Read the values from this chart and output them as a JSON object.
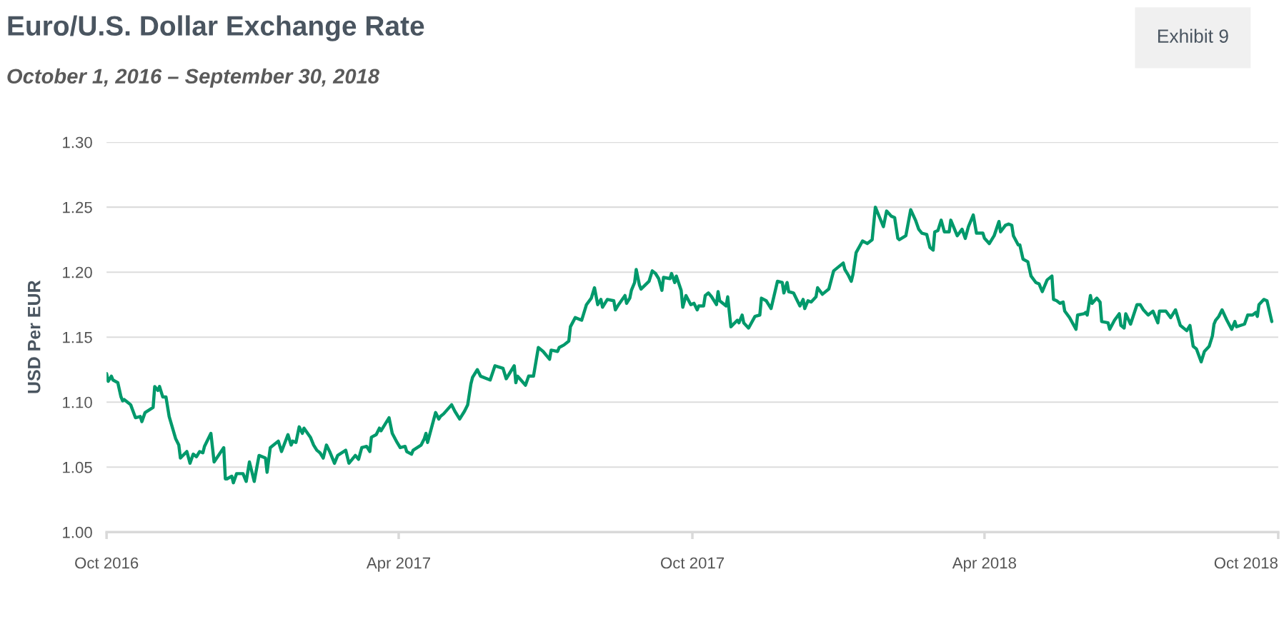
{
  "chart_data": {
    "type": "line",
    "title": "Euro/U.S. Dollar Exchange Rate",
    "subtitle": "October 1, 2016 – September 30, 2018",
    "ylabel": "USD Per EUR",
    "annotations": [
      "Exhibit 9"
    ],
    "ylim": [
      1.0,
      1.3
    ],
    "yticks": [
      {
        "value": 1.0,
        "label": "1.00"
      },
      {
        "value": 1.05,
        "label": "1.05"
      },
      {
        "value": 1.1,
        "label": "1.10"
      },
      {
        "value": 1.15,
        "label": "1.15"
      },
      {
        "value": 1.2,
        "label": "1.20"
      },
      {
        "value": 1.25,
        "label": "1.25"
      },
      {
        "value": 1.3,
        "label": "1.30"
      }
    ],
    "xlim": [
      "2016-10-01",
      "2018-10-01"
    ],
    "xticks": [
      {
        "value": "2016-10-01",
        "label": "Oct 2016"
      },
      {
        "value": "2017-04-01",
        "label": "Apr 2017"
      },
      {
        "value": "2017-10-01",
        "label": "Oct 2017"
      },
      {
        "value": "2018-04-01",
        "label": "Apr 2018"
      },
      {
        "value": "2018-10-01",
        "label": "Oct 2018"
      }
    ],
    "grid": "y",
    "marker": "none",
    "line_style": "solid",
    "series": [
      {
        "color": "#00996b",
        "x": [
          "2016-10-01",
          "2016-10-02",
          "2016-10-04",
          "2016-10-05",
          "2016-10-08",
          "2016-10-10",
          "2016-10-11",
          "2016-10-12",
          "2016-10-14",
          "2016-10-16",
          "2016-10-19",
          "2016-10-22",
          "2016-10-23",
          "2016-10-25",
          "2016-10-30",
          "2016-10-31",
          "2016-11-02",
          "2016-11-03",
          "2016-11-05",
          "2016-11-07",
          "2016-11-09",
          "2016-11-13",
          "2016-11-15",
          "2016-11-16",
          "2016-11-20",
          "2016-11-22",
          "2016-11-24",
          "2016-11-26",
          "2016-11-28",
          "2016-11-30",
          "2016-12-01",
          "2016-12-05",
          "2016-12-07",
          "2016-12-13",
          "2016-12-14",
          "2016-12-15",
          "2016-12-18",
          "2016-12-19",
          "2016-12-21",
          "2016-12-25",
          "2016-12-27",
          "2016-12-29",
          "2017-01-01",
          "2017-01-04",
          "2017-01-08",
          "2017-01-09",
          "2017-01-11",
          "2017-01-16",
          "2017-01-18",
          "2017-01-22",
          "2017-01-24",
          "2017-01-25",
          "2017-01-27",
          "2017-01-29",
          "2017-01-31",
          "2017-02-01",
          "2017-02-05",
          "2017-02-07",
          "2017-02-09",
          "2017-02-11",
          "2017-02-13",
          "2017-02-15",
          "2017-02-17",
          "2017-02-20",
          "2017-02-22",
          "2017-02-27",
          "2017-03-01",
          "2017-03-05",
          "2017-03-07",
          "2017-03-09",
          "2017-03-12",
          "2017-03-14",
          "2017-03-15",
          "2017-03-18",
          "2017-03-20",
          "2017-03-21",
          "2017-03-26",
          "2017-03-28",
          "2017-03-31",
          "2017-04-02",
          "2017-04-05",
          "2017-04-06",
          "2017-04-09",
          "2017-04-10",
          "2017-04-15",
          "2017-04-17",
          "2017-04-18",
          "2017-04-19",
          "2017-04-24",
          "2017-04-26",
          "2017-04-27",
          "2017-04-29",
          "2017-05-04",
          "2017-05-06",
          "2017-05-09",
          "2017-05-12",
          "2017-05-14",
          "2017-05-16",
          "2017-05-17",
          "2017-05-20",
          "2017-05-22",
          "2017-05-28",
          "2017-05-31",
          "2017-06-05",
          "2017-06-07",
          "2017-06-12",
          "2017-06-13",
          "2017-06-14",
          "2017-06-19",
          "2017-06-21",
          "2017-06-24",
          "2017-06-27",
          "2017-06-30",
          "2017-07-04",
          "2017-07-05",
          "2017-07-09",
          "2017-07-10",
          "2017-07-13",
          "2017-07-16",
          "2017-07-17",
          "2017-07-20",
          "2017-07-24",
          "2017-07-27",
          "2017-07-30",
          "2017-08-01",
          "2017-08-03",
          "2017-08-05",
          "2017-08-06",
          "2017-08-09",
          "2017-08-13",
          "2017-08-14",
          "2017-08-16",
          "2017-08-20",
          "2017-08-21",
          "2017-08-23",
          "2017-08-24",
          "2017-08-26",
          "2017-08-27",
          "2017-08-29",
          "2017-08-30",
          "2017-09-04",
          "2017-09-06",
          "2017-09-08",
          "2017-09-10",
          "2017-09-12",
          "2017-09-13",
          "2017-09-17",
          "2017-09-18",
          "2017-09-20",
          "2017-09-21",
          "2017-09-24",
          "2017-09-25",
          "2017-09-27",
          "2017-09-30",
          "2017-10-02",
          "2017-10-04",
          "2017-10-05",
          "2017-10-08",
          "2017-10-09",
          "2017-10-11",
          "2017-10-13",
          "2017-10-16",
          "2017-10-17",
          "2017-10-18",
          "2017-10-22",
          "2017-10-23",
          "2017-10-25",
          "2017-10-29",
          "2017-10-30",
          "2017-11-01",
          "2017-11-02",
          "2017-11-05",
          "2017-11-09",
          "2017-11-12",
          "2017-11-13",
          "2017-11-16",
          "2017-11-19",
          "2017-11-23",
          "2017-11-26",
          "2017-11-27",
          "2017-11-29",
          "2017-11-30",
          "2017-12-03",
          "2017-12-05",
          "2017-12-07",
          "2017-12-09",
          "2017-12-10",
          "2017-12-12",
          "2017-12-14",
          "2017-12-17",
          "2017-12-18",
          "2017-12-21",
          "2017-12-25",
          "2017-12-28",
          "2017-12-31",
          "2018-01-03",
          "2018-01-04",
          "2018-01-06",
          "2018-01-08",
          "2018-01-09",
          "2018-01-11",
          "2018-01-15",
          "2018-01-18",
          "2018-01-21",
          "2018-01-23",
          "2018-01-26",
          "2018-01-28",
          "2018-01-30",
          "2018-02-02",
          "2018-02-04",
          "2018-02-06",
          "2018-02-07",
          "2018-02-11",
          "2018-02-14",
          "2018-02-17",
          "2018-02-19",
          "2018-02-21",
          "2018-02-24",
          "2018-02-26",
          "2018-02-28",
          "2018-03-01",
          "2018-03-03",
          "2018-03-05",
          "2018-03-07",
          "2018-03-10",
          "2018-03-11",
          "2018-03-15",
          "2018-03-18",
          "2018-03-20",
          "2018-03-22",
          "2018-03-25",
          "2018-03-27",
          "2018-03-31",
          "2018-04-01",
          "2018-04-04",
          "2018-04-07",
          "2018-04-10",
          "2018-04-11",
          "2018-04-14",
          "2018-04-16",
          "2018-04-18",
          "2018-04-19",
          "2018-04-22",
          "2018-04-23",
          "2018-04-25",
          "2018-04-28",
          "2018-04-30",
          "2018-05-03",
          "2018-05-05",
          "2018-05-07",
          "2018-05-10",
          "2018-05-13",
          "2018-05-14",
          "2018-05-16",
          "2018-05-18",
          "2018-05-20",
          "2018-05-21",
          "2018-05-24",
          "2018-05-28",
          "2018-05-29",
          "2018-06-02",
          "2018-06-03",
          "2018-06-04",
          "2018-06-06",
          "2018-06-07",
          "2018-06-10",
          "2018-06-12",
          "2018-06-13",
          "2018-06-17",
          "2018-06-18",
          "2018-06-21",
          "2018-06-24",
          "2018-06-25",
          "2018-06-27",
          "2018-06-28",
          "2018-07-01",
          "2018-07-05",
          "2018-07-07",
          "2018-07-09",
          "2018-07-12",
          "2018-07-15",
          "2018-07-18",
          "2018-07-19",
          "2018-07-23",
          "2018-07-26",
          "2018-07-29",
          "2018-08-01",
          "2018-08-05",
          "2018-08-07",
          "2018-08-09",
          "2018-08-11",
          "2018-08-14",
          "2018-08-16",
          "2018-08-19",
          "2018-08-21",
          "2018-08-22",
          "2018-08-23",
          "2018-08-25",
          "2018-08-27",
          "2018-08-30",
          "2018-09-02",
          "2018-09-04",
          "2018-09-05",
          "2018-09-10",
          "2018-09-12",
          "2018-09-15",
          "2018-09-17",
          "2018-09-18",
          "2018-09-19",
          "2018-09-22",
          "2018-09-24",
          "2018-09-27"
        ],
        "values": [
          1.122,
          1.116,
          1.12,
          1.117,
          1.115,
          1.104,
          1.101,
          1.102,
          1.1,
          1.098,
          1.088,
          1.089,
          1.085,
          1.092,
          1.096,
          1.112,
          1.109,
          1.112,
          1.104,
          1.104,
          1.089,
          1.072,
          1.067,
          1.057,
          1.062,
          1.053,
          1.06,
          1.058,
          1.062,
          1.061,
          1.066,
          1.076,
          1.054,
          1.065,
          1.041,
          1.041,
          1.043,
          1.038,
          1.045,
          1.045,
          1.039,
          1.054,
          1.039,
          1.059,
          1.057,
          1.046,
          1.065,
          1.07,
          1.062,
          1.075,
          1.067,
          1.07,
          1.069,
          1.081,
          1.076,
          1.08,
          1.073,
          1.067,
          1.063,
          1.061,
          1.057,
          1.067,
          1.062,
          1.053,
          1.059,
          1.063,
          1.053,
          1.059,
          1.056,
          1.065,
          1.066,
          1.062,
          1.073,
          1.075,
          1.08,
          1.078,
          1.088,
          1.076,
          1.069,
          1.065,
          1.066,
          1.062,
          1.06,
          1.063,
          1.067,
          1.072,
          1.076,
          1.069,
          1.092,
          1.087,
          1.089,
          1.091,
          1.098,
          1.093,
          1.087,
          1.093,
          1.098,
          1.114,
          1.119,
          1.125,
          1.12,
          1.117,
          1.128,
          1.126,
          1.118,
          1.128,
          1.115,
          1.12,
          1.113,
          1.12,
          1.12,
          1.142,
          1.139,
          1.133,
          1.14,
          1.139,
          1.142,
          1.144,
          1.147,
          1.158,
          1.165,
          1.163,
          1.175,
          1.18,
          1.188,
          1.175,
          1.179,
          1.173,
          1.179,
          1.178,
          1.171,
          1.175,
          1.182,
          1.176,
          1.18,
          1.186,
          1.192,
          1.202,
          1.19,
          1.187,
          1.193,
          1.201,
          1.199,
          1.195,
          1.186,
          1.196,
          1.195,
          1.199,
          1.192,
          1.197,
          1.186,
          1.173,
          1.182,
          1.175,
          1.176,
          1.171,
          1.174,
          1.174,
          1.182,
          1.184,
          1.181,
          1.175,
          1.185,
          1.178,
          1.174,
          1.181,
          1.158,
          1.163,
          1.161,
          1.167,
          1.161,
          1.157,
          1.166,
          1.167,
          1.18,
          1.178,
          1.172,
          1.193,
          1.192,
          1.184,
          1.192,
          1.185,
          1.184,
          1.179,
          1.174,
          1.179,
          1.172,
          1.178,
          1.177,
          1.181,
          1.188,
          1.183,
          1.187,
          1.201,
          1.204,
          1.207,
          1.202,
          1.198,
          1.193,
          1.198,
          1.215,
          1.224,
          1.222,
          1.225,
          1.25,
          1.241,
          1.235,
          1.247,
          1.243,
          1.242,
          1.226,
          1.225,
          1.228,
          1.248,
          1.24,
          1.233,
          1.23,
          1.229,
          1.219,
          1.217,
          1.231,
          1.232,
          1.24,
          1.231,
          1.231,
          1.24,
          1.228,
          1.233,
          1.226,
          1.235,
          1.244,
          1.23,
          1.23,
          1.226,
          1.222,
          1.228,
          1.239,
          1.231,
          1.236,
          1.237,
          1.236,
          1.228,
          1.221,
          1.221,
          1.21,
          1.208,
          1.197,
          1.192,
          1.191,
          1.185,
          1.194,
          1.197,
          1.179,
          1.178,
          1.176,
          1.177,
          1.17,
          1.165,
          1.156,
          1.167,
          1.168,
          1.169,
          1.167,
          1.182,
          1.176,
          1.18,
          1.177,
          1.162,
          1.161,
          1.156,
          1.163,
          1.168,
          1.159,
          1.157,
          1.168,
          1.16,
          1.175,
          1.175,
          1.171,
          1.167,
          1.17,
          1.161,
          1.17,
          1.17,
          1.165,
          1.171,
          1.159,
          1.155,
          1.159,
          1.143,
          1.141,
          1.131,
          1.139,
          1.143,
          1.151,
          1.16,
          1.163,
          1.166,
          1.171,
          1.163,
          1.156,
          1.162,
          1.158,
          1.16,
          1.167,
          1.167,
          1.169,
          1.166,
          1.175,
          1.179,
          1.178,
          1.162
        ]
      }
    ]
  }
}
